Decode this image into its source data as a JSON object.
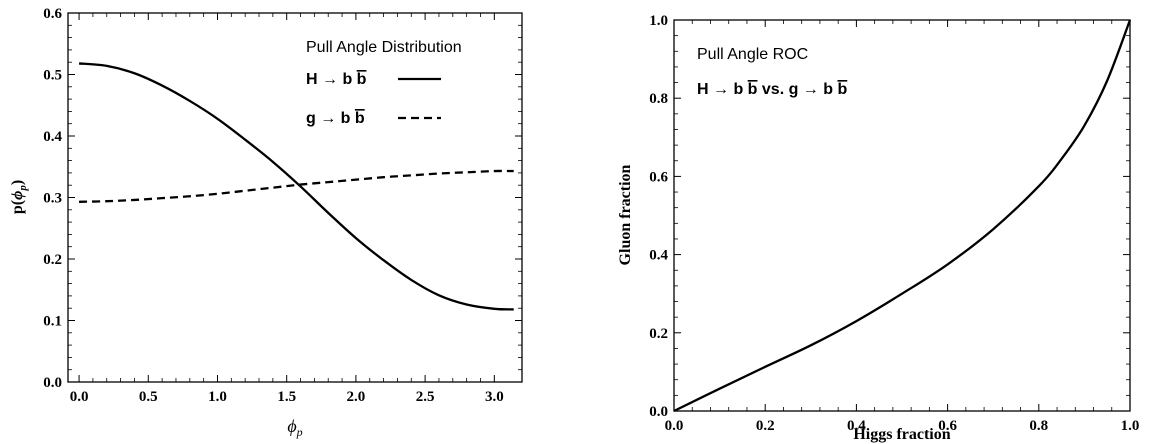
{
  "chart_data": [
    {
      "type": "line",
      "title": "",
      "xlabel": "ϕp",
      "ylabel": "p(ϕp)",
      "xlim": [
        -0.08,
        3.2
      ],
      "ylim": [
        0,
        0.6
      ],
      "xticks": [
        0.0,
        0.5,
        1.0,
        1.5,
        2.0,
        2.5,
        3.0
      ],
      "xtick_labels": [
        "0.0",
        "0.5",
        "1.0",
        "1.5",
        "2.0",
        "2.5",
        "3.0"
      ],
      "yticks": [
        0.0,
        0.1,
        0.2,
        0.3,
        0.4,
        0.5,
        0.6
      ],
      "ytick_labels": [
        "0.0",
        "0.1",
        "0.2",
        "0.3",
        "0.4",
        "0.5",
        "0.6"
      ],
      "grid": false,
      "legend_title": "Pull Angle Distribution",
      "legend_position": "top-right",
      "series": [
        {
          "name": "H → b b̄",
          "style": "solid",
          "color": "#000000",
          "x": [
            0.0,
            0.2,
            0.4,
            0.6,
            0.8,
            1.0,
            1.2,
            1.4,
            1.6,
            1.8,
            2.0,
            2.2,
            2.4,
            2.6,
            2.8,
            3.0,
            3.14
          ],
          "y": [
            0.518,
            0.514,
            0.502,
            0.482,
            0.457,
            0.428,
            0.394,
            0.358,
            0.318,
            0.275,
            0.234,
            0.198,
            0.166,
            0.141,
            0.126,
            0.119,
            0.118
          ]
        },
        {
          "name": "g → b b̄",
          "style": "dashed",
          "color": "#000000",
          "x": [
            0.0,
            0.2,
            0.4,
            0.6,
            0.8,
            1.0,
            1.2,
            1.4,
            1.6,
            1.8,
            2.0,
            2.2,
            2.4,
            2.6,
            2.8,
            3.0,
            3.14
          ],
          "y": [
            0.293,
            0.294,
            0.296,
            0.299,
            0.302,
            0.306,
            0.311,
            0.316,
            0.321,
            0.325,
            0.329,
            0.333,
            0.336,
            0.339,
            0.341,
            0.343,
            0.343
          ]
        }
      ]
    },
    {
      "type": "line",
      "title": "",
      "xlabel": "Higgs fraction",
      "ylabel": "Gluon fraction",
      "xlim": [
        0,
        1
      ],
      "ylim": [
        0,
        1
      ],
      "xticks": [
        0.0,
        0.2,
        0.4,
        0.6,
        0.8,
        1.0
      ],
      "xtick_labels": [
        "0.0",
        "0.2",
        "0.4",
        "0.6",
        "0.8",
        "1.0"
      ],
      "yticks": [
        0.0,
        0.2,
        0.4,
        0.6,
        0.8,
        1.0
      ],
      "ytick_labels": [
        "0.0",
        "0.2",
        "0.4",
        "0.6",
        "0.8",
        "1.0"
      ],
      "grid": false,
      "legend_title": "Pull Angle ROC",
      "legend_subtitle": "H → b b̄ vs. g → b b̄",
      "legend_position": "top-left",
      "series": [
        {
          "name": "",
          "style": "solid",
          "color": "#000000",
          "x": [
            0.0,
            0.1,
            0.2,
            0.3,
            0.4,
            0.5,
            0.6,
            0.7,
            0.8,
            0.85,
            0.9,
            0.95,
            1.0
          ],
          "y": [
            0.0,
            0.057,
            0.113,
            0.168,
            0.23,
            0.3,
            0.375,
            0.465,
            0.575,
            0.645,
            0.73,
            0.845,
            1.0
          ]
        }
      ]
    }
  ]
}
